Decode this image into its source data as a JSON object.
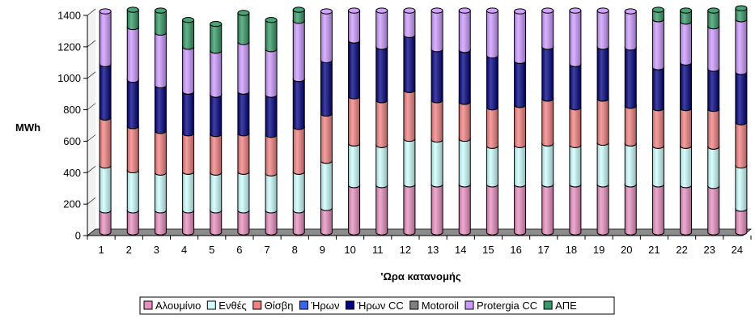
{
  "chart_data": {
    "type": "bar",
    "stacked": true,
    "style": "3d-cylinder",
    "ylabel": "MWh",
    "xlabel": "'Ωρα κατανομής",
    "ylim": [
      0,
      1400
    ],
    "yticks": [
      0,
      200,
      400,
      600,
      800,
      1000,
      1200,
      1400
    ],
    "grid": false,
    "legend_position": "bottom",
    "categories": [
      "1",
      "2",
      "3",
      "4",
      "5",
      "6",
      "7",
      "8",
      "9",
      "10",
      "11",
      "12",
      "13",
      "14",
      "15",
      "16",
      "17",
      "18",
      "19",
      "20",
      "21",
      "22",
      "23",
      "24"
    ],
    "series": [
      {
        "name": "Αλουμίνιο",
        "color": "#E88FBF",
        "values": [
          140,
          140,
          140,
          140,
          140,
          140,
          140,
          140,
          155,
          300,
          300,
          305,
          305,
          305,
          305,
          305,
          305,
          305,
          305,
          305,
          305,
          300,
          295,
          150
        ]
      },
      {
        "name": "Ενθές",
        "color": "#CCFFFF",
        "values": [
          285,
          255,
          240,
          245,
          240,
          245,
          235,
          245,
          300,
          265,
          255,
          290,
          285,
          290,
          245,
          250,
          260,
          250,
          265,
          260,
          245,
          250,
          250,
          275
        ]
      },
      {
        "name": "Θίσβη",
        "color": "#F28080",
        "values": [
          305,
          280,
          265,
          245,
          245,
          245,
          245,
          285,
          300,
          300,
          285,
          310,
          250,
          235,
          245,
          255,
          285,
          240,
          280,
          240,
          240,
          240,
          240,
          275
        ]
      },
      {
        "name": "Ήρων",
        "color": "#3366FF",
        "values": [
          0,
          0,
          0,
          0,
          0,
          0,
          0,
          0,
          0,
          0,
          0,
          0,
          0,
          0,
          0,
          0,
          0,
          0,
          0,
          0,
          0,
          0,
          0,
          0
        ]
      },
      {
        "name": "Ήρων CC",
        "color": "#000080",
        "values": [
          340,
          295,
          290,
          265,
          250,
          265,
          255,
          305,
          340,
          355,
          340,
          350,
          325,
          330,
          330,
          280,
          330,
          275,
          330,
          370,
          260,
          290,
          255,
          320
        ]
      },
      {
        "name": "Motoroil",
        "color": "#808080",
        "values": [
          0,
          0,
          0,
          0,
          0,
          0,
          0,
          0,
          0,
          0,
          0,
          0,
          0,
          0,
          0,
          0,
          0,
          0,
          0,
          0,
          0,
          0,
          0,
          0
        ]
      },
      {
        "name": "Protergia CC",
        "color": "#CC99FF",
        "values": [
          335,
          335,
          335,
          285,
          280,
          315,
          290,
          370,
          310,
          190,
          230,
          155,
          245,
          250,
          285,
          315,
          230,
          340,
          230,
          230,
          305,
          260,
          270,
          335
        ]
      },
      {
        "name": "ΑΠΕ",
        "color": "#339966",
        "values": [
          0,
          110,
          140,
          170,
          170,
          185,
          185,
          70,
          0,
          0,
          0,
          0,
          0,
          0,
          0,
          0,
          0,
          0,
          0,
          0,
          60,
          70,
          100,
          70
        ]
      }
    ]
  }
}
